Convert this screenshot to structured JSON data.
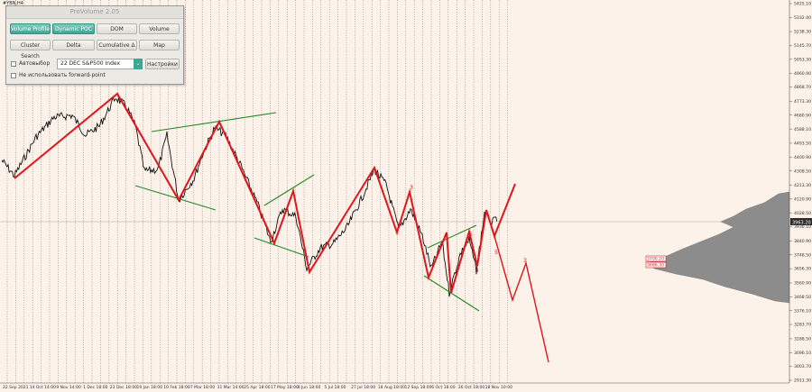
{
  "chart": {
    "symbol": "#YBN,H4",
    "price_ticks": [
      "5425.10",
      "5332.40",
      "5238.30",
      "5145.70",
      "5053.30",
      "4960.90",
      "4868.70",
      "4773.30",
      "4680.90",
      "4588.10",
      "4493.50",
      "4400.90",
      "4308.50",
      "4213.30",
      "4120.90",
      "4028.50",
      "3936.10",
      "3840.90",
      "3748.50",
      "3656.30",
      "3560.90",
      "3468.50",
      "3376.10",
      "3283.70",
      "3188.50",
      "3096.10",
      "3003.70",
      "2911.30"
    ],
    "time_labels": [
      "22 Sep 2021",
      "14 Oct 14:00",
      "9 Nov 14:00",
      "1 Dec 18:00",
      "23 Dec 18:00",
      "19 Jan 18:00",
      "10 Feb 18:00",
      "7 Mar 18:00",
      "31 Mar 14:00",
      "25 Apr 18:00",
      "17 May 18:00",
      "9 Jun 18:00",
      "5 Jul 18:00",
      "27 Jul 18:00",
      "18 Aug 18:00",
      "12 Sep 18:00",
      "6 Oct 18:00",
      "26 Oct 18:00",
      "18 Nov 10:00"
    ],
    "current_price": "3963.20",
    "level_labels": [
      "3700.20",
      "3686.30"
    ],
    "wave_marks": [
      "3",
      "4",
      "5",
      "3",
      "5"
    ],
    "colors": {
      "wave": "#e0161b",
      "trend": "#1f8a1f",
      "price": "#111111",
      "profile": "#8c8c8c",
      "background": "#fdf2e9"
    }
  },
  "panel": {
    "title": "ProVolume 2.05",
    "buttons": [
      {
        "label": "Volume Profile",
        "active": true
      },
      {
        "label": "Dynamic POC",
        "active": true
      },
      {
        "label": "DOM",
        "active": false
      },
      {
        "label": "Volume",
        "active": false
      },
      {
        "label": "Cluster Search",
        "active": false
      },
      {
        "label": "Delta",
        "active": false
      },
      {
        "label": "Cumulative Δ",
        "active": false
      },
      {
        "label": "Map",
        "active": false
      }
    ],
    "auto_label": "Автовыбор",
    "symbol_value": "22 DEC S&P500 Index",
    "settings_label": "Настройки",
    "forward_label": "Не использовать forward-point"
  }
}
